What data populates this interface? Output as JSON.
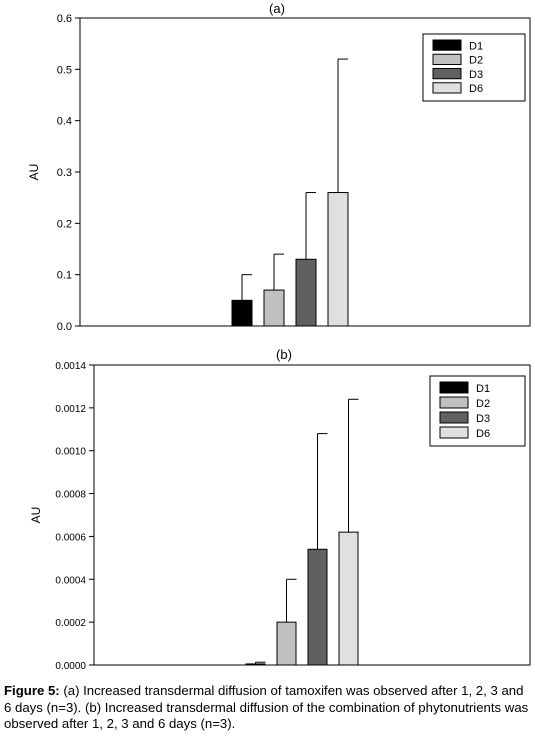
{
  "chart_data": [
    {
      "type": "bar",
      "panel_label": "(a)",
      "ylabel": "AU",
      "ylim": [
        0,
        0.6
      ],
      "yticks": [
        "0.0",
        "0.1",
        "0.2",
        "0.3",
        "0.4",
        "0.5",
        "0.6"
      ],
      "legend_position": "top-right",
      "series": [
        {
          "name": "D1",
          "value": 0.05,
          "error": 0.05,
          "color": "#000000"
        },
        {
          "name": "D2",
          "value": 0.07,
          "error": 0.07,
          "color": "#c0c0c0"
        },
        {
          "name": "D3",
          "value": 0.13,
          "error": 0.13,
          "color": "#606060"
        },
        {
          "name": "D6",
          "value": 0.26,
          "error": 0.26,
          "color": "#e0e0e0"
        }
      ]
    },
    {
      "type": "bar",
      "panel_label": "(b)",
      "ylabel": "AU",
      "ylim": [
        0,
        0.0014
      ],
      "yticks": [
        "0.0000",
        "0.0002",
        "0.0004",
        "0.0006",
        "0.0008",
        "0.0010",
        "0.0012",
        "0.0014"
      ],
      "legend_position": "top-right",
      "series": [
        {
          "name": "D1",
          "value": 5e-06,
          "error": 8e-06,
          "color": "#000000"
        },
        {
          "name": "D2",
          "value": 0.0002,
          "error": 0.0002,
          "color": "#c0c0c0"
        },
        {
          "name": "D3",
          "value": 0.00054,
          "error": 0.00054,
          "color": "#606060"
        },
        {
          "name": "D6",
          "value": 0.00062,
          "error": 0.00062,
          "color": "#e0e0e0"
        }
      ]
    }
  ],
  "caption": {
    "label": "Figure 5:",
    "text": " (a) Increased transdermal diffusion of tamoxifen was observed after 1, 2, 3 and 6 days (n=3). (b) Increased transdermal diffusion of the combination of phytonutrients was observed after 1, 2, 3 and 6 days (n=3)."
  }
}
